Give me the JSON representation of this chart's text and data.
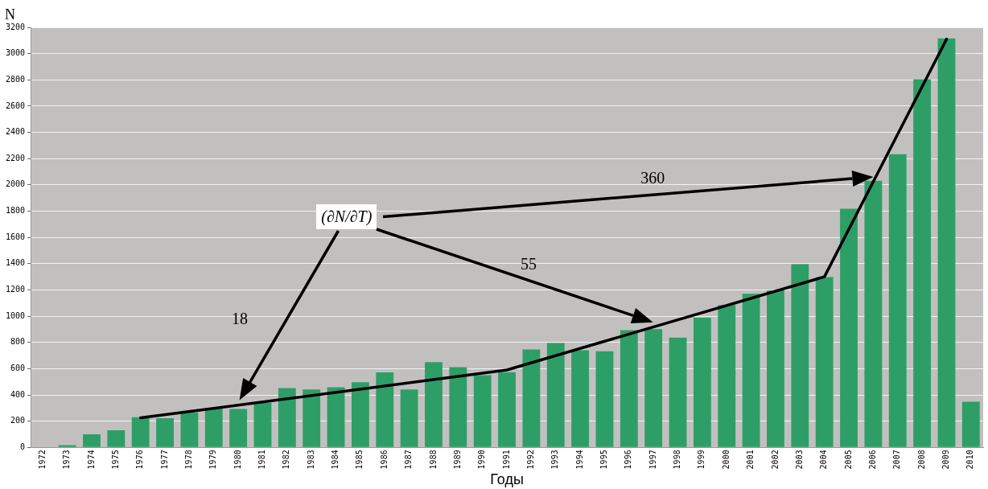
{
  "chart_data": {
    "type": "bar",
    "xlabel": "Годы",
    "ylabel": "N",
    "categories": [
      "1972",
      "1973",
      "1974",
      "1975",
      "1976",
      "1977",
      "1978",
      "1979",
      "1980",
      "1981",
      "1982",
      "1983",
      "1984",
      "1985",
      "1986",
      "1987",
      "1988",
      "1989",
      "1990",
      "1991",
      "1992",
      "1993",
      "1994",
      "1995",
      "1996",
      "1997",
      "1998",
      "1999",
      "2000",
      "2001",
      "2002",
      "2003",
      "2004",
      "2005",
      "2006",
      "2007",
      "2008",
      "2009",
      "2010"
    ],
    "series": [
      {
        "color": "#2e9e67",
        "values": [
          0,
          18,
          100,
          130,
          230,
          222,
          265,
          300,
          293,
          340,
          452,
          442,
          458,
          496,
          572,
          442,
          650,
          612,
          550,
          573,
          747,
          796,
          740,
          732,
          893,
          901,
          837,
          988,
          1085,
          1170,
          1196,
          1395,
          1298,
          1818,
          2031,
          2233,
          2803,
          3115,
          348
        ]
      },
      {
        "type": "line",
        "color": "#000000",
        "values": [
          null,
          null,
          null,
          null,
          225,
          null,
          null,
          null,
          null,
          null,
          null,
          null,
          null,
          null,
          null,
          null,
          null,
          null,
          null,
          590,
          null,
          null,
          null,
          null,
          null,
          null,
          null,
          null,
          null,
          null,
          null,
          null,
          1300,
          null,
          null,
          null,
          null,
          3110,
          null
        ]
      }
    ],
    "ylim": [
      0,
      3200
    ],
    "yticks": [
      0,
      200,
      400,
      600,
      800,
      1000,
      1200,
      1400,
      1600,
      1800,
      2000,
      2200,
      2400,
      2600,
      2800,
      3000,
      3200
    ],
    "grid": "y",
    "legend": false,
    "marker": "none",
    "line_style": "solid",
    "annotations": [
      "(∂N/∂T)",
      "18",
      "55",
      "360"
    ]
  }
}
